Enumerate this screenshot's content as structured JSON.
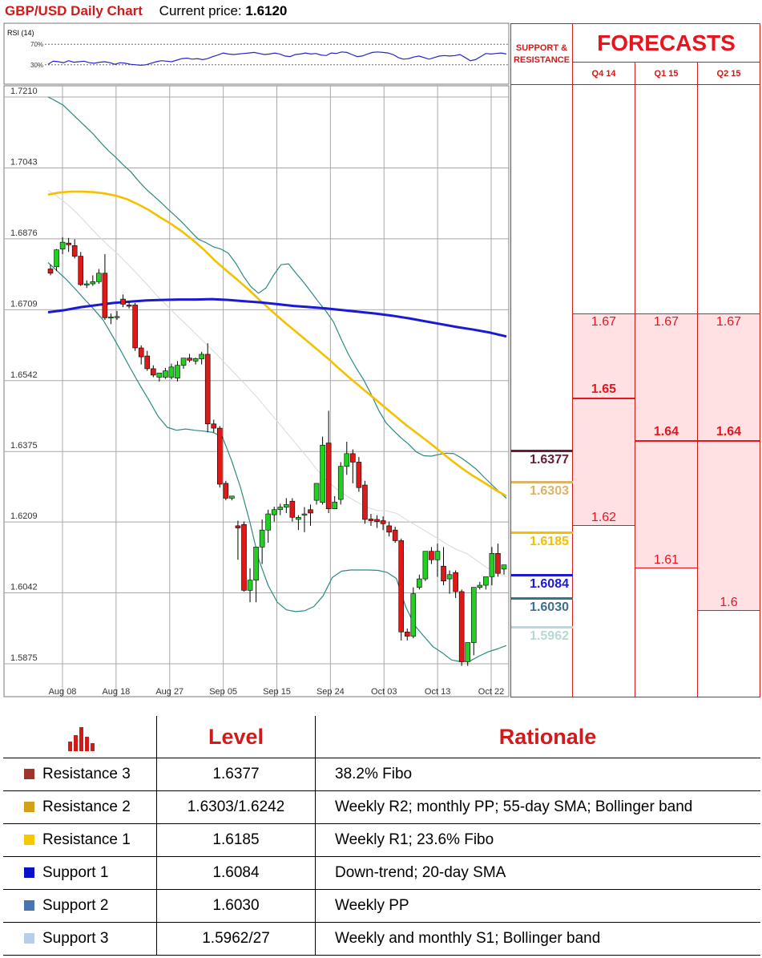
{
  "header": {
    "title": "GBP/USD Daily Chart",
    "price_label": "Current price:",
    "price_value": "1.6120"
  },
  "rsi": {
    "label": "RSI (14)",
    "levels": [
      "70%",
      "30%"
    ],
    "values": [
      31,
      37,
      36,
      34,
      38,
      35,
      36,
      37,
      34,
      33,
      35,
      36,
      34,
      31,
      34,
      33,
      31,
      30,
      29,
      30,
      33,
      36,
      38,
      37,
      36,
      39,
      42,
      43,
      41,
      42,
      40,
      42,
      46,
      49,
      53,
      51,
      50,
      51,
      52,
      53,
      54,
      52,
      50,
      51,
      53,
      51,
      47,
      46,
      50,
      51,
      53,
      51,
      52,
      49,
      48,
      53,
      52,
      55,
      54,
      50,
      46,
      47,
      51,
      54,
      55,
      54,
      53,
      50,
      44,
      41,
      42,
      45,
      47,
      44,
      41,
      44,
      47,
      48,
      47,
      48,
      50,
      44,
      38,
      40,
      46,
      52,
      51,
      52,
      53,
      51
    ]
  },
  "chart_data": {
    "type": "candlestick",
    "title": "GBP/USD Daily Chart",
    "y_ticks": [
      "1.7210",
      "1.7043",
      "1.6876",
      "1.6709",
      "1.6542",
      "1.6375",
      "1.6209",
      "1.6042",
      "1.5875"
    ],
    "ylim": [
      1.5875,
      1.721
    ],
    "x_ticks": [
      "Aug 08",
      "Aug 18",
      "Aug 27",
      "Sep 05",
      "Sep 15",
      "Sep 24",
      "Oct 03",
      "Oct 13",
      "Oct 22"
    ],
    "candles": [
      [
        1.6805,
        1.6815,
        1.6795,
        1.679
      ],
      [
        1.681,
        1.6852,
        1.685,
        1.68
      ],
      [
        1.6852,
        1.688,
        1.6868,
        1.684
      ],
      [
        1.6866,
        1.6878,
        1.6862,
        1.6845
      ],
      [
        1.686,
        1.6875,
        1.6835,
        1.683
      ],
      [
        1.6835,
        1.6845,
        1.6768,
        1.6765
      ],
      [
        1.6768,
        1.6778,
        1.677,
        1.676
      ],
      [
        1.677,
        1.679,
        1.6775,
        1.6765
      ],
      [
        1.6775,
        1.6805,
        1.6795,
        1.677
      ],
      [
        1.6795,
        1.684,
        1.669,
        1.6685
      ],
      [
        1.669,
        1.67,
        1.6692,
        1.6675
      ],
      [
        1.6692,
        1.6706,
        1.6693,
        1.6685
      ],
      [
        1.6734,
        1.6745,
        1.6722,
        1.6715
      ],
      [
        1.672,
        1.6728,
        1.6718,
        1.6712
      ],
      [
        1.672,
        1.6725,
        1.6619,
        1.6612
      ],
      [
        1.6619,
        1.6625,
        1.6598,
        1.658
      ],
      [
        1.66,
        1.6612,
        1.657,
        1.6565
      ],
      [
        1.657,
        1.6578,
        1.6555,
        1.655
      ],
      [
        1.655,
        1.656,
        1.656,
        1.654
      ],
      [
        1.655,
        1.6572,
        1.6565,
        1.6546
      ],
      [
        1.655,
        1.6582,
        1.6574,
        1.6545
      ],
      [
        1.6548,
        1.6588,
        1.6578,
        1.654
      ],
      [
        1.6578,
        1.6595,
        1.6595,
        1.657
      ],
      [
        1.6595,
        1.6605,
        1.659,
        1.6585
      ],
      [
        1.6588,
        1.6596,
        1.6594,
        1.658
      ],
      [
        1.6593,
        1.661,
        1.6604,
        1.658
      ],
      [
        1.6604,
        1.663,
        1.644,
        1.642
      ],
      [
        1.644,
        1.645,
        1.643,
        1.642
      ],
      [
        1.643,
        1.6435,
        1.6298,
        1.629
      ],
      [
        1.63,
        1.6306,
        1.6265,
        1.626
      ],
      [
        1.6265,
        1.627,
        1.627,
        1.626
      ],
      [
        1.62,
        1.6212,
        1.6195,
        1.612
      ],
      [
        1.6203,
        1.621,
        1.6048,
        1.6045
      ],
      [
        1.6048,
        1.61,
        1.6072,
        1.602
      ],
      [
        1.6072,
        1.6138,
        1.615,
        1.602
      ],
      [
        1.615,
        1.6215,
        1.619,
        1.611
      ],
      [
        1.619,
        1.6238,
        1.6228,
        1.616
      ],
      [
        1.6226,
        1.6245,
        1.6238,
        1.621
      ],
      [
        1.6238,
        1.6252,
        1.6244,
        1.6225
      ],
      [
        1.6244,
        1.6265,
        1.625,
        1.623
      ],
      [
        1.6258,
        1.6265,
        1.622,
        1.621
      ],
      [
        1.6215,
        1.6225,
        1.622,
        1.619
      ],
      [
        1.6228,
        1.6244,
        1.6228,
        1.6185
      ],
      [
        1.6238,
        1.625,
        1.623,
        1.62
      ],
      [
        1.626,
        1.63,
        1.63,
        1.625
      ],
      [
        1.6255,
        1.641,
        1.639,
        1.625
      ],
      [
        1.6395,
        1.6471,
        1.624,
        1.623
      ],
      [
        1.624,
        1.627,
        1.6256,
        1.6245
      ],
      [
        1.6262,
        1.635,
        1.634,
        1.625
      ],
      [
        1.634,
        1.6398,
        1.637,
        1.632
      ],
      [
        1.637,
        1.638,
        1.635,
        1.63
      ],
      [
        1.635,
        1.6362,
        1.629,
        1.628
      ],
      [
        1.6296,
        1.6306,
        1.6215,
        1.6205
      ],
      [
        1.6216,
        1.6228,
        1.6212,
        1.62
      ],
      [
        1.6215,
        1.6225,
        1.621,
        1.6195
      ],
      [
        1.6212,
        1.6222,
        1.6205,
        1.619
      ],
      [
        1.62,
        1.621,
        1.6185,
        1.6175
      ],
      [
        1.619,
        1.6198,
        1.6165,
        1.616
      ],
      [
        1.6165,
        1.617,
        1.595,
        1.593
      ],
      [
        1.595,
        1.5958,
        1.594,
        1.593
      ],
      [
        1.594,
        1.6055,
        1.604,
        1.5935
      ],
      [
        1.6055,
        1.6085,
        1.6075,
        1.605
      ],
      [
        1.6075,
        1.609,
        1.614,
        1.607
      ],
      [
        1.614,
        1.615,
        1.612,
        1.611
      ],
      [
        1.612,
        1.6158,
        1.614,
        1.608
      ],
      [
        1.6105,
        1.615,
        1.607,
        1.606
      ],
      [
        1.6075,
        1.6095,
        1.6085,
        1.604
      ],
      [
        1.609,
        1.6095,
        1.6045,
        1.603
      ],
      [
        1.6045,
        1.605,
        1.588,
        1.587
      ],
      [
        1.588,
        1.5895,
        1.5925,
        1.587
      ],
      [
        1.5925,
        1.6045,
        1.6055,
        1.5895
      ],
      [
        1.6055,
        1.6068,
        1.606,
        1.605
      ],
      [
        1.606,
        1.608,
        1.608,
        1.605
      ],
      [
        1.608,
        1.615,
        1.6135,
        1.606
      ],
      [
        1.6135,
        1.6158,
        1.6088,
        1.608
      ],
      [
        1.6098,
        1.6105,
        1.6108,
        1.6085
      ]
    ],
    "series": [
      {
        "name": "bollinger-upper",
        "color": "#2a8a84",
        "values": [
          1.721,
          1.7201,
          1.7191,
          1.7174,
          1.7157,
          1.714,
          1.7123,
          1.7103,
          1.7084,
          1.7068,
          1.705,
          1.7034,
          1.7013,
          1.6994,
          1.6978,
          1.6962,
          1.6945,
          1.6929,
          1.6912,
          1.6893,
          1.6875,
          1.6867,
          1.6857,
          1.6852,
          1.6842,
          1.6818,
          1.6788,
          1.6763,
          1.6748,
          1.676,
          1.679,
          1.6815,
          1.6817,
          1.6795,
          1.6774,
          1.6751,
          1.6727,
          1.6705,
          1.668,
          1.664,
          1.6603,
          1.6572,
          1.6544,
          1.651,
          1.6472,
          1.6442,
          1.6424,
          1.6407,
          1.6392,
          1.6374,
          1.6365,
          1.6364,
          1.6368,
          1.6371,
          1.637,
          1.636,
          1.6347,
          1.6333,
          1.6315,
          1.6298,
          1.6281,
          1.6265
        ]
      },
      {
        "name": "bollinger-lower",
        "color": "#2a8a84",
        "values": [
          1.682,
          1.68,
          1.678,
          1.6757,
          1.6733,
          1.671,
          1.6685,
          1.6648,
          1.661,
          1.657,
          1.6532,
          1.6496,
          1.6458,
          1.6432,
          1.6425,
          1.6428,
          1.6425,
          1.6423,
          1.642,
          1.641,
          1.6355,
          1.629,
          1.621,
          1.612,
          1.606,
          1.602,
          1.6002,
          1.5998,
          1.6,
          1.601,
          1.6035,
          1.6078,
          1.6093,
          1.6096,
          1.6096,
          1.6096,
          1.6095,
          1.609,
          1.6076,
          1.601,
          1.5965,
          1.594,
          1.5915,
          1.5901,
          1.5884,
          1.588,
          1.5881,
          1.5893,
          1.5903,
          1.591,
          1.5918
        ]
      },
      {
        "name": "sma-thin",
        "color": "#d9d9d9",
        "values": [
          1.699,
          1.6975,
          1.6956,
          1.6934,
          1.6909,
          1.6884,
          1.6861,
          1.684,
          1.6816,
          1.6792,
          1.6767,
          1.674,
          1.6717,
          1.6693,
          1.6671,
          1.6648,
          1.6625,
          1.6602,
          1.6577,
          1.6552,
          1.6528,
          1.6502,
          1.6474,
          1.6446,
          1.6418,
          1.639,
          1.6362,
          1.6332,
          1.6306,
          1.6286,
          1.627,
          1.6256,
          1.6244,
          1.6236,
          1.6235,
          1.6229,
          1.6214,
          1.62,
          1.6186,
          1.6172,
          1.6157,
          1.6144,
          1.6135,
          1.6119,
          1.6102,
          1.609,
          1.608
        ]
      },
      {
        "name": "sma-55",
        "color": "#f5c000",
        "values": [
          1.698,
          1.6985,
          1.6987,
          1.6987,
          1.6986,
          1.6983,
          1.6978,
          1.697,
          1.6958,
          1.6944,
          1.6927,
          1.6911,
          1.6893,
          1.6872,
          1.6849,
          1.6823,
          1.68,
          1.6778,
          1.6755,
          1.673,
          1.6706,
          1.6683,
          1.6661,
          1.6639,
          1.6617,
          1.6595,
          1.6571,
          1.6548,
          1.6526,
          1.6504,
          1.6482,
          1.646,
          1.6438,
          1.6418,
          1.6398,
          1.6377,
          1.6356,
          1.6336,
          1.6318,
          1.6302,
          1.6285,
          1.627
        ]
      },
      {
        "name": "sma-200",
        "color": "#1a1ad6",
        "values": [
          1.6703,
          1.6708,
          1.6715,
          1.672,
          1.6725,
          1.6728,
          1.6731,
          1.6732,
          1.6733,
          1.6733,
          1.6734,
          1.6732,
          1.6729,
          1.6726,
          1.6722,
          1.6718,
          1.6715,
          1.6712,
          1.6708,
          1.6704,
          1.67,
          1.6695,
          1.6689,
          1.6682,
          1.6675,
          1.6668,
          1.6662,
          1.6655,
          1.6646
        ]
      }
    ]
  },
  "panel": {
    "sr_header": "SUPPORT & RESISTANCE",
    "forecast_header": "FORECASTS",
    "quarters": [
      "Q4 14",
      "Q1 15",
      "Q2 15"
    ],
    "forecasts": [
      {
        "high": "1.67",
        "point": "1.65",
        "low": "1.62",
        "high_value": 1.67,
        "point_value": 1.65,
        "low_value": 1.62
      },
      {
        "high": "1.67",
        "point": "1.64",
        "low": "1.61",
        "high_value": 1.67,
        "point_value": 1.64,
        "low_value": 1.61
      },
      {
        "high": "1.67",
        "point": "1.64",
        "low": "1.6",
        "high_value": 1.67,
        "point_value": 1.64,
        "low_value": 1.6
      }
    ],
    "sr_levels": [
      {
        "label": "1.6377",
        "value": 1.6377,
        "color": "#6b1a3a",
        "text_color": "#6b1a3a"
      },
      {
        "label": "1.6303",
        "value": 1.6303,
        "color": "#d9b46a",
        "text_color": "#d9b46a"
      },
      {
        "label": "1.6185",
        "value": 1.6185,
        "color": "#f5c000",
        "text_color": "#f5c000"
      },
      {
        "label": "1.6084",
        "value": 1.6084,
        "color": "#1a1ad6",
        "text_color": "#1a1ad6"
      },
      {
        "label": "1.6030",
        "value": 1.603,
        "color": "#3a7090",
        "text_color": "#3a7090"
      },
      {
        "label": "1.5962",
        "value": 1.5962,
        "color": "#b8d8d8",
        "text_color": "#b8d8d8"
      }
    ]
  },
  "table": {
    "level_header": "Level",
    "rationale_header": "Rationale",
    "rows": [
      {
        "name": "Resistance 3",
        "color": "#a0332b",
        "level": "1.6377",
        "rationale": "38.2% Fibo"
      },
      {
        "name": "Resistance 2",
        "color": "#d4a017",
        "level": "1.6303/1.6242",
        "rationale": "Weekly R2; monthly PP; 55-day SMA; Bollinger band"
      },
      {
        "name": "Resistance 1",
        "color": "#f5c800",
        "level": "1.6185",
        "rationale": "Weekly R1; 23.6% Fibo"
      },
      {
        "name": "Support 1",
        "color": "#0a10c8",
        "level": "1.6084",
        "rationale": "Down-trend; 20-day SMA"
      },
      {
        "name": "Support 2",
        "color": "#4a74b0",
        "level": "1.6030",
        "rationale": "Weekly PP"
      },
      {
        "name": "Support 3",
        "color": "#b8cde6",
        "level": "1.5962/27",
        "rationale": "Weekly and monthly S1; Bollinger band"
      }
    ]
  }
}
